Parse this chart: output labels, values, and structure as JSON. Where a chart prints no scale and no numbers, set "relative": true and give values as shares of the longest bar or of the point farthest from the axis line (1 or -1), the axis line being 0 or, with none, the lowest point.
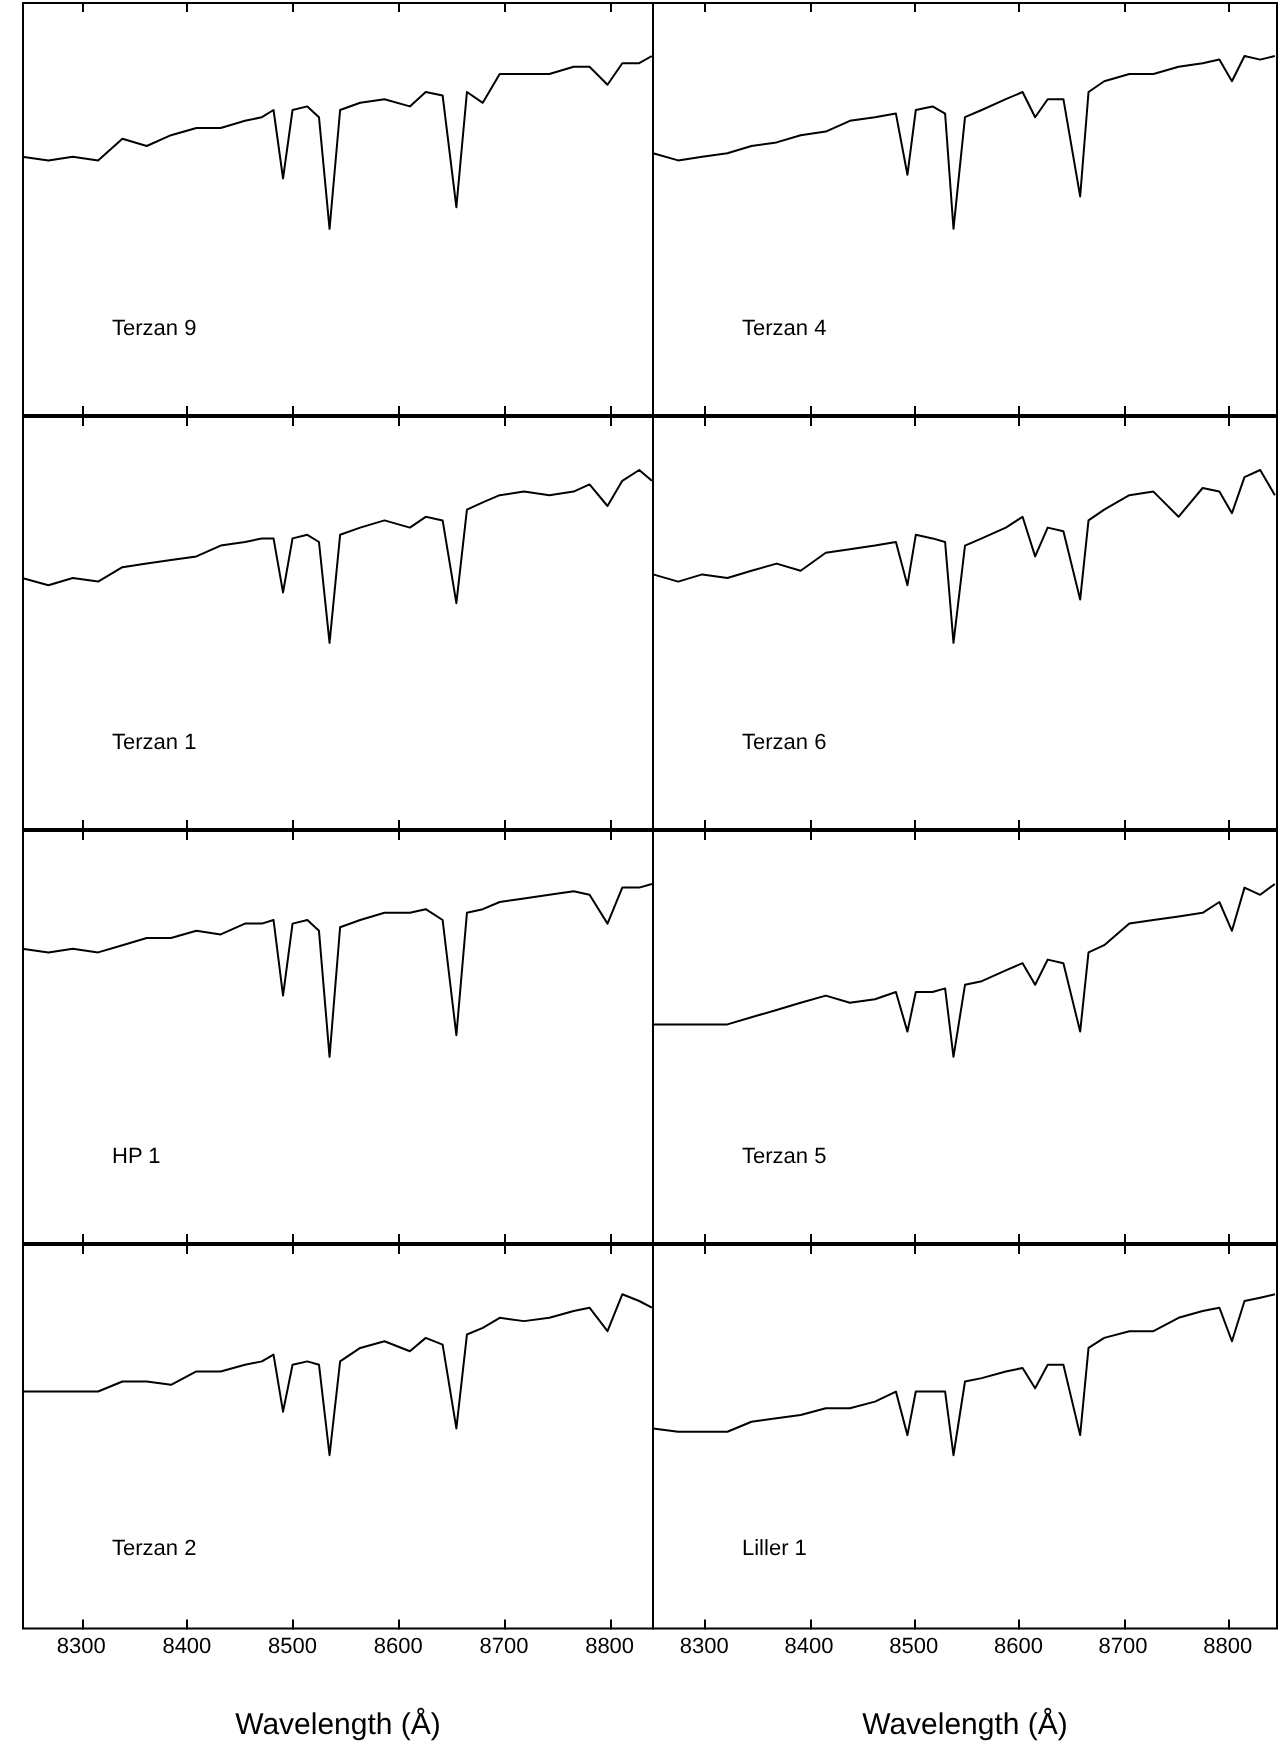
{
  "chart_data": [
    {
      "type": "line",
      "relative": true,
      "color": "#000000",
      "xlim": [
        8244,
        8842
      ],
      "xticks": [
        8300,
        8400,
        8500,
        8600,
        8700,
        8800
      ],
      "tick_labels": false,
      "annotations": [
        "Terzan 9"
      ],
      "x": [
        8244,
        8269,
        8292,
        8316,
        8339,
        8362,
        8385,
        8409,
        8432,
        8455,
        8471,
        8482,
        8491,
        8500,
        8514,
        8525,
        8535,
        8545,
        8564,
        8587,
        8611,
        8626,
        8642,
        8655,
        8665,
        8680,
        8696,
        8719,
        8743,
        8766,
        8781,
        8798,
        8812,
        8828,
        8840
      ],
      "values": [
        0.72,
        0.71,
        0.72,
        0.71,
        0.77,
        0.75,
        0.78,
        0.8,
        0.8,
        0.82,
        0.83,
        0.85,
        0.66,
        0.85,
        0.86,
        0.83,
        0.52,
        0.85,
        0.87,
        0.88,
        0.86,
        0.9,
        0.89,
        0.58,
        0.9,
        0.87,
        0.95,
        0.95,
        0.95,
        0.97,
        0.97,
        0.92,
        0.98,
        0.98,
        1
      ]
    },
    {
      "type": "line",
      "relative": true,
      "color": "#000000",
      "xlim": [
        8250,
        8848
      ],
      "xticks": [
        8300,
        8400,
        8500,
        8600,
        8700,
        8800
      ],
      "tick_labels": false,
      "annotations": [
        "Terzan 4"
      ],
      "x": [
        8251,
        8275,
        8298,
        8322,
        8345,
        8369,
        8392,
        8416,
        8439,
        8463,
        8483,
        8494,
        8502,
        8518,
        8530,
        8538,
        8549,
        8565,
        8588,
        8604,
        8616,
        8628,
        8643,
        8659,
        8667,
        8682,
        8706,
        8729,
        8753,
        8776,
        8792,
        8804,
        8816,
        8831,
        8845
      ],
      "values": [
        0.73,
        0.71,
        0.72,
        0.73,
        0.75,
        0.76,
        0.78,
        0.79,
        0.82,
        0.83,
        0.84,
        0.67,
        0.85,
        0.86,
        0.84,
        0.52,
        0.83,
        0.85,
        0.88,
        0.9,
        0.83,
        0.88,
        0.88,
        0.61,
        0.9,
        0.93,
        0.95,
        0.95,
        0.97,
        0.98,
        0.99,
        0.93,
        1,
        0.99,
        1
      ]
    },
    {
      "type": "line",
      "relative": true,
      "color": "#000000",
      "xlim": [
        8244,
        8842
      ],
      "xticks": [
        8300,
        8400,
        8500,
        8600,
        8700,
        8800
      ],
      "tick_labels": false,
      "annotations": [
        "Terzan 1"
      ],
      "x": [
        8244,
        8269,
        8292,
        8316,
        8339,
        8362,
        8385,
        8409,
        8432,
        8455,
        8471,
        8482,
        8491,
        8500,
        8514,
        8525,
        8535,
        8545,
        8564,
        8587,
        8611,
        8626,
        8642,
        8655,
        8665,
        8680,
        8696,
        8719,
        8743,
        8766,
        8781,
        8798,
        8812,
        8828,
        8840
      ],
      "values": [
        0.7,
        0.68,
        0.7,
        0.69,
        0.73,
        0.74,
        0.75,
        0.76,
        0.79,
        0.8,
        0.81,
        0.81,
        0.66,
        0.81,
        0.82,
        0.8,
        0.52,
        0.82,
        0.84,
        0.86,
        0.84,
        0.87,
        0.86,
        0.63,
        0.89,
        0.91,
        0.93,
        0.94,
        0.93,
        0.94,
        0.96,
        0.9,
        0.97,
        1,
        0.97
      ]
    },
    {
      "type": "line",
      "relative": true,
      "color": "#000000",
      "xlim": [
        8250,
        8848
      ],
      "xticks": [
        8300,
        8400,
        8500,
        8600,
        8700,
        8800
      ],
      "tick_labels": false,
      "annotations": [
        "Terzan 6"
      ],
      "x": [
        8251,
        8275,
        8298,
        8322,
        8345,
        8369,
        8392,
        8416,
        8439,
        8463,
        8483,
        8494,
        8502,
        8518,
        8530,
        8538,
        8549,
        8565,
        8588,
        8604,
        8616,
        8628,
        8643,
        8659,
        8667,
        8682,
        8706,
        8729,
        8753,
        8776,
        8792,
        8804,
        8816,
        8831,
        8845
      ],
      "values": [
        0.71,
        0.69,
        0.71,
        0.7,
        0.72,
        0.74,
        0.72,
        0.77,
        0.78,
        0.79,
        0.8,
        0.68,
        0.82,
        0.81,
        0.8,
        0.52,
        0.79,
        0.81,
        0.84,
        0.87,
        0.76,
        0.84,
        0.83,
        0.64,
        0.86,
        0.89,
        0.93,
        0.94,
        0.87,
        0.95,
        0.94,
        0.88,
        0.98,
        1,
        0.93
      ]
    },
    {
      "type": "line",
      "relative": true,
      "color": "#000000",
      "xlim": [
        8244,
        8842
      ],
      "xticks": [
        8300,
        8400,
        8500,
        8600,
        8700,
        8800
      ],
      "tick_labels": false,
      "annotations": [
        "HP 1"
      ],
      "x": [
        8244,
        8269,
        8292,
        8316,
        8339,
        8362,
        8385,
        8409,
        8432,
        8455,
        8471,
        8482,
        8491,
        8500,
        8514,
        8525,
        8535,
        8545,
        8564,
        8587,
        8611,
        8626,
        8642,
        8655,
        8665,
        8680,
        8696,
        8719,
        8743,
        8766,
        8781,
        8798,
        8812,
        8828,
        8840
      ],
      "values": [
        0.82,
        0.81,
        0.82,
        0.81,
        0.83,
        0.85,
        0.85,
        0.87,
        0.86,
        0.89,
        0.89,
        0.9,
        0.69,
        0.89,
        0.9,
        0.87,
        0.52,
        0.88,
        0.9,
        0.92,
        0.92,
        0.93,
        0.9,
        0.58,
        0.92,
        0.93,
        0.95,
        0.96,
        0.97,
        0.98,
        0.97,
        0.89,
        0.99,
        0.99,
        1
      ]
    },
    {
      "type": "line",
      "relative": true,
      "color": "#000000",
      "xlim": [
        8250,
        8848
      ],
      "xticks": [
        8300,
        8400,
        8500,
        8600,
        8700,
        8800
      ],
      "tick_labels": false,
      "annotations": [
        "Terzan 5"
      ],
      "x": [
        8251,
        8275,
        8298,
        8322,
        8345,
        8369,
        8392,
        8416,
        8439,
        8463,
        8483,
        8494,
        8502,
        8518,
        8530,
        8538,
        8549,
        8565,
        8588,
        8604,
        8616,
        8628,
        8643,
        8659,
        8667,
        8682,
        8706,
        8729,
        8753,
        8776,
        8792,
        8804,
        8816,
        8831,
        8845
      ],
      "values": [
        0.61,
        0.61,
        0.61,
        0.61,
        0.63,
        0.65,
        0.67,
        0.69,
        0.67,
        0.68,
        0.7,
        0.59,
        0.7,
        0.7,
        0.71,
        0.52,
        0.72,
        0.73,
        0.76,
        0.78,
        0.72,
        0.79,
        0.78,
        0.59,
        0.81,
        0.83,
        0.89,
        0.9,
        0.91,
        0.92,
        0.95,
        0.87,
        0.99,
        0.97,
        1
      ]
    },
    {
      "type": "line",
      "relative": true,
      "color": "#000000",
      "xlim": [
        8244,
        8842
      ],
      "xticks": [
        8300,
        8400,
        8500,
        8600,
        8700,
        8800
      ],
      "tick_labels": "x",
      "xlabel": "Wavelength (Å)",
      "annotations": [
        "Terzan 2"
      ],
      "x": [
        8244,
        8269,
        8292,
        8316,
        8339,
        8362,
        8385,
        8409,
        8432,
        8455,
        8471,
        8482,
        8491,
        8500,
        8514,
        8525,
        8535,
        8545,
        8564,
        8587,
        8611,
        8626,
        8642,
        8655,
        8665,
        8680,
        8696,
        8719,
        8743,
        8766,
        8781,
        8798,
        8812,
        8828,
        8840
      ],
      "values": [
        0.71,
        0.71,
        0.71,
        0.71,
        0.74,
        0.74,
        0.73,
        0.77,
        0.77,
        0.79,
        0.8,
        0.82,
        0.65,
        0.79,
        0.8,
        0.79,
        0.52,
        0.8,
        0.84,
        0.86,
        0.83,
        0.87,
        0.85,
        0.6,
        0.88,
        0.9,
        0.93,
        0.92,
        0.93,
        0.95,
        0.96,
        0.89,
        1,
        0.98,
        0.96
      ]
    },
    {
      "type": "line",
      "relative": true,
      "color": "#000000",
      "xlim": [
        8250,
        8848
      ],
      "xticks": [
        8300,
        8400,
        8500,
        8600,
        8700,
        8800
      ],
      "tick_labels": "x",
      "xlabel": "Wavelength (Å)",
      "annotations": [
        "Liller 1"
      ],
      "x": [
        8251,
        8275,
        8298,
        8322,
        8345,
        8369,
        8392,
        8416,
        8439,
        8463,
        8483,
        8494,
        8502,
        8518,
        8530,
        8538,
        8549,
        8565,
        8588,
        8604,
        8616,
        8628,
        8643,
        8659,
        8667,
        8682,
        8706,
        8729,
        8753,
        8776,
        8792,
        8804,
        8816,
        8831,
        8845
      ],
      "values": [
        0.6,
        0.59,
        0.59,
        0.59,
        0.62,
        0.63,
        0.64,
        0.66,
        0.66,
        0.68,
        0.71,
        0.58,
        0.71,
        0.71,
        0.71,
        0.52,
        0.74,
        0.75,
        0.77,
        0.78,
        0.72,
        0.79,
        0.79,
        0.58,
        0.84,
        0.87,
        0.89,
        0.89,
        0.93,
        0.95,
        0.96,
        0.86,
        0.98,
        0.99,
        1
      ]
    }
  ]
}
